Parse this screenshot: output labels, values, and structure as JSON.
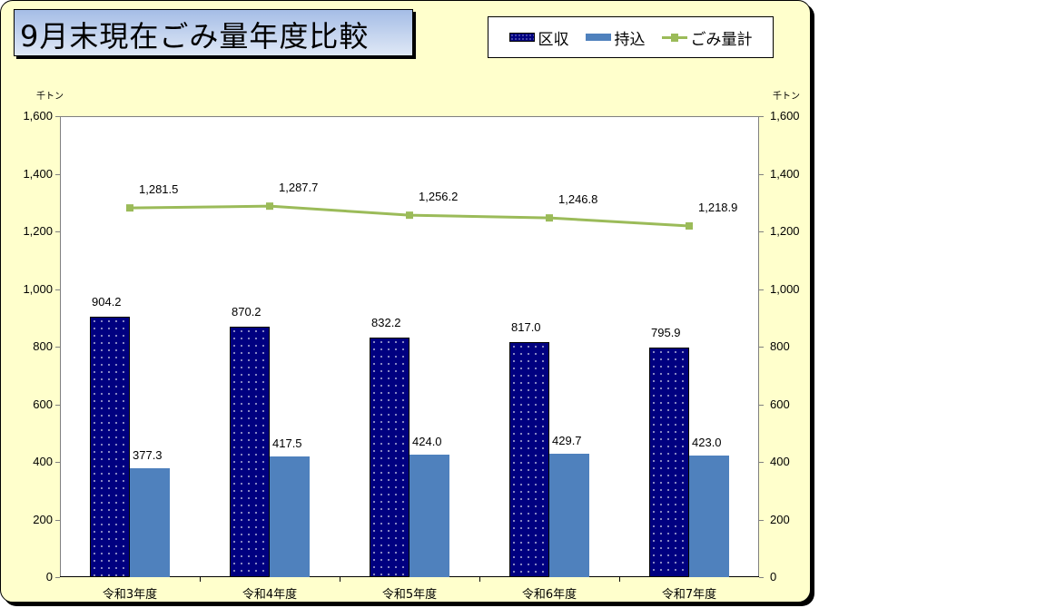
{
  "chart_data": {
    "type": "bar",
    "title": "9月末現在ごみ量年度比較",
    "categories": [
      "令和3年度",
      "令和4年度",
      "令和5年度",
      "令和6年度",
      "令和7年度"
    ],
    "series": [
      {
        "name": "区収",
        "type": "bar",
        "color": "#000080",
        "pattern": "dotted",
        "values": [
          904.2,
          870.2,
          832.2,
          817.0,
          795.9
        ]
      },
      {
        "name": "持込",
        "type": "bar",
        "color": "#4f81bd",
        "values": [
          377.3,
          417.5,
          424.0,
          429.7,
          423.0
        ]
      },
      {
        "name": "ごみ量計",
        "type": "line",
        "color": "#9bbb59",
        "marker": "square",
        "values": [
          1281.5,
          1287.7,
          1256.2,
          1246.8,
          1218.9
        ]
      }
    ],
    "value_labels": {
      "区収": [
        "904.2",
        "870.2",
        "832.2",
        "817.0",
        "795.9"
      ],
      "持込": [
        "377.3",
        "417.5",
        "424.0",
        "429.7",
        "423.0"
      ],
      "ごみ量計": [
        "1,281.5",
        "1,287.7",
        "1,256.2",
        "1,246.8",
        "1,218.9"
      ]
    },
    "ylabel_left": "千トン",
    "ylabel_right": "千トン",
    "ylim": [
      0,
      1600
    ],
    "yticks": [
      "0",
      "200",
      "400",
      "600",
      "800",
      "1,000",
      "1,200",
      "1,400",
      "1,600"
    ],
    "legend_position": "top-right",
    "grid": false
  },
  "legend": {
    "items": [
      "区収",
      "持込",
      "ごみ量計"
    ]
  }
}
